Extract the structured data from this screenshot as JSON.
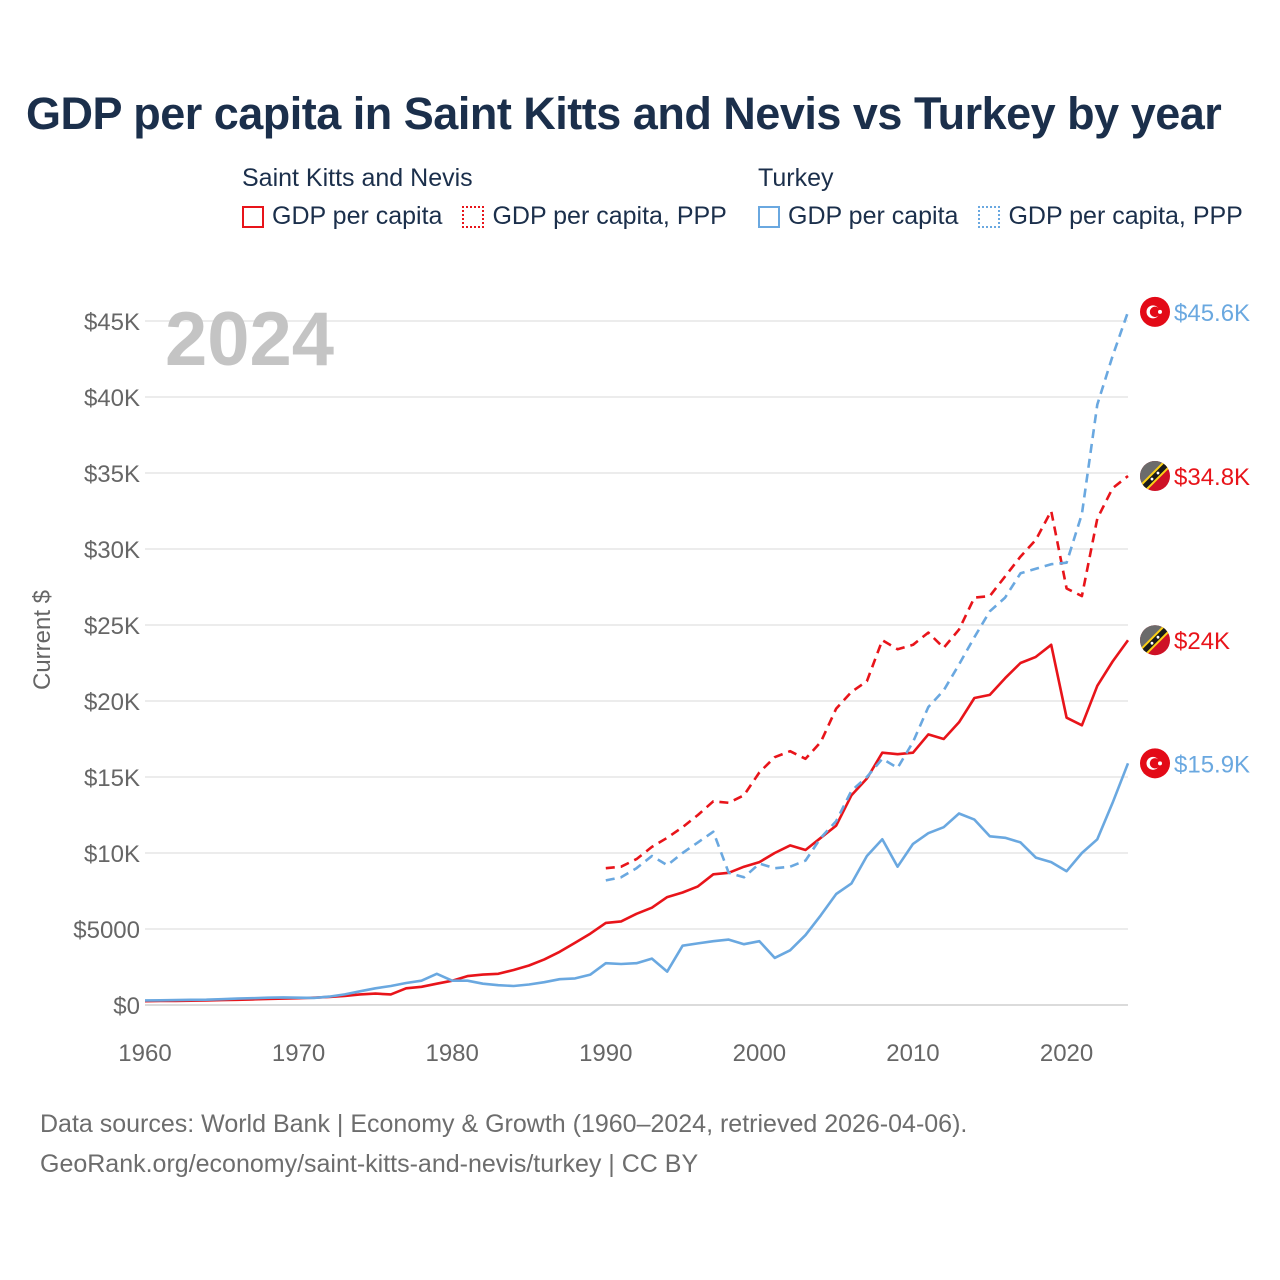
{
  "title": "GDP per capita in Saint Kitts and Nevis vs Turkey by year",
  "year_label": "2024",
  "legend": {
    "groups": [
      {
        "name": "Saint Kitts and Nevis",
        "color": "#e8141a",
        "items": [
          {
            "label": "GDP per capita",
            "style": "solid"
          },
          {
            "label": "GDP per capita, PPP",
            "style": "dotted"
          }
        ]
      },
      {
        "name": "Turkey",
        "color": "#6aa8e0",
        "items": [
          {
            "label": "GDP per capita",
            "style": "solid"
          },
          {
            "label": "GDP per capita, PPP",
            "style": "dotted"
          }
        ]
      }
    ]
  },
  "footer": {
    "line1": "Data sources: World Bank | Economy & Growth (1960–2024, retrieved 2026-04-06).",
    "line2": "GeoRank.org/economy/saint-kitts-and-nevis/turkey | CC BY"
  },
  "chart_data": {
    "type": "line",
    "ylabel": "Current $",
    "xlim": [
      1960,
      2024
    ],
    "ylim": [
      0,
      47000
    ],
    "x_ticks": [
      1960,
      1970,
      1980,
      1990,
      2000,
      2010,
      2020
    ],
    "y_ticks": [
      {
        "value": 0,
        "label": "$0"
      },
      {
        "value": 5000,
        "label": "$5000"
      },
      {
        "value": 10000,
        "label": "$10K"
      },
      {
        "value": 15000,
        "label": "$15K"
      },
      {
        "value": 20000,
        "label": "$20K"
      },
      {
        "value": 25000,
        "label": "$25K"
      },
      {
        "value": 30000,
        "label": "$30K"
      },
      {
        "value": 35000,
        "label": "$35K"
      },
      {
        "value": 40000,
        "label": "$40K"
      },
      {
        "value": 45000,
        "label": "$45K"
      }
    ],
    "series": [
      {
        "name": "Saint Kitts and Nevis GDP per capita",
        "color": "#e8141a",
        "dash": "solid",
        "end_label": "$24K",
        "flag": "kn",
        "start_year": 1960,
        "values": [
          250,
          260,
          270,
          280,
          300,
          320,
          340,
          370,
          400,
          420,
          450,
          480,
          530,
          600,
          700,
          750,
          700,
          1100,
          1200,
          1400,
          1600,
          1900,
          2000,
          2050,
          2300,
          2600,
          3000,
          3500,
          4100,
          4700,
          5400,
          5500,
          6000,
          6400,
          7100,
          7400,
          7800,
          8600,
          8700,
          9100,
          9400,
          10000,
          10500,
          10200,
          11000,
          11800,
          13800,
          14900,
          16600,
          16500,
          16600,
          17800,
          17500,
          18600,
          20200,
          20400,
          21500,
          22500,
          22900,
          23700,
          18900,
          18400,
          21000,
          22600,
          24000
        ]
      },
      {
        "name": "Saint Kitts and Nevis GDP per capita, PPP",
        "color": "#e8141a",
        "dash": "dashed",
        "end_label": "$34.8K",
        "flag": "kn",
        "start_year": 1990,
        "values": [
          9000,
          9100,
          9600,
          10400,
          11000,
          11700,
          12500,
          13400,
          13300,
          13800,
          15300,
          16300,
          16700,
          16200,
          17300,
          19500,
          20600,
          21300,
          24000,
          23400,
          23700,
          24500,
          23500,
          24700,
          26800,
          26900,
          28200,
          29500,
          30600,
          32500,
          27400,
          26900,
          32000,
          34000,
          34800
        ]
      },
      {
        "name": "Turkey GDP per capita",
        "color": "#6aa8e0",
        "dash": "solid",
        "end_label": "$15.9K",
        "flag": "tr",
        "start_year": 1960,
        "values": [
          300,
          310,
          320,
          340,
          350,
          380,
          420,
          450,
          480,
          500,
          480,
          470,
          550,
          700,
          900,
          1100,
          1250,
          1450,
          1600,
          2050,
          1600,
          1600,
          1400,
          1300,
          1250,
          1350,
          1500,
          1700,
          1750,
          2000,
          2750,
          2700,
          2750,
          3050,
          2200,
          3900,
          4050,
          4200,
          4300,
          4000,
          4200,
          3100,
          3600,
          4600,
          5900,
          7300,
          8000,
          9800,
          10900,
          9100,
          10600,
          11300,
          11700,
          12600,
          12200,
          11100,
          11000,
          10700,
          9700,
          9400,
          8800,
          10000,
          10900,
          13300,
          15900
        ]
      },
      {
        "name": "Turkey GDP per capita, PPP",
        "color": "#6aa8e0",
        "dash": "dashed",
        "end_label": "$45.6K",
        "flag": "tr",
        "start_year": 1990,
        "values": [
          8200,
          8400,
          9000,
          9800,
          9200,
          10000,
          10700,
          11400,
          8700,
          8400,
          9300,
          9000,
          9100,
          9500,
          11000,
          12100,
          14100,
          15000,
          16200,
          15600,
          17300,
          19600,
          20700,
          22400,
          24200,
          25900,
          26800,
          28400,
          28700,
          29000,
          29100,
          32300,
          39500,
          42700,
          45600
        ]
      }
    ]
  }
}
